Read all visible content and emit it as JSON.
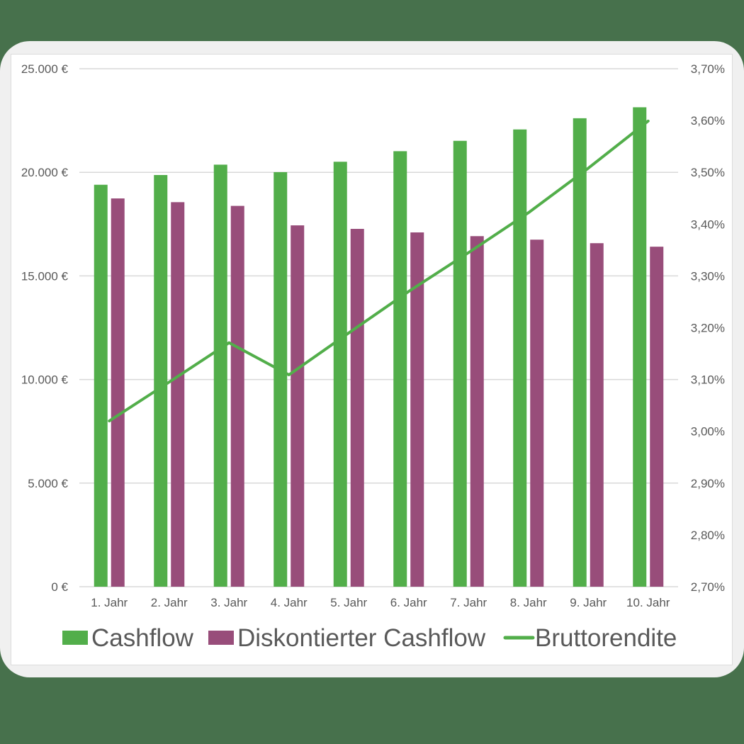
{
  "colors": {
    "background": "#47714c",
    "frame": "#f0f0f0",
    "panel": "#ffffff",
    "cashflow": "#52ae4a",
    "discounted": "#984d7a",
    "line": "#52ae4a",
    "grid": "#d9d9d9",
    "text": "#595959"
  },
  "chart_data": {
    "type": "bar",
    "title": "",
    "xlabel": "",
    "ylabel": "",
    "categories": [
      "1. Jahr",
      "2. Jahr",
      "3. Jahr",
      "4. Jahr",
      "5. Jahr",
      "6. Jahr",
      "7. Jahr",
      "8. Jahr",
      "9. Jahr",
      "10. Jahr"
    ],
    "series": [
      {
        "name": "Cashflow",
        "type": "bar",
        "axis": "left",
        "values": [
          19400,
          19870,
          20370,
          20010,
          20510,
          21020,
          21520,
          22070,
          22610,
          23140
        ]
      },
      {
        "name": "Diskontierter Cashflow",
        "type": "bar",
        "axis": "left",
        "values": [
          18740,
          18560,
          18380,
          17440,
          17270,
          17100,
          16920,
          16750,
          16580,
          16410
        ]
      },
      {
        "name": "Bruttorendite",
        "type": "line",
        "axis": "right",
        "values": [
          3.02,
          3.095,
          3.171,
          3.109,
          3.19,
          3.27,
          3.345,
          3.422,
          3.508,
          3.599
        ]
      }
    ],
    "ylim": [
      0,
      25000
    ],
    "y2lim": [
      2.7,
      3.7
    ],
    "yticks": [
      "0 €",
      "5.000 €",
      "10.000 €",
      "15.000 €",
      "20.000 €",
      "25.000 €"
    ],
    "y2ticks": [
      "2,70%",
      "2,80%",
      "2,90%",
      "3,00%",
      "3,10%",
      "3,20%",
      "3,30%",
      "3,40%",
      "3,50%",
      "3,60%",
      "3,70%"
    ],
    "grid": true,
    "legend_position": "bottom"
  },
  "legend": {
    "items": [
      {
        "label": "Cashflow",
        "kind": "box"
      },
      {
        "label": "Diskontierter Cashflow",
        "kind": "box"
      },
      {
        "label": "Bruttorendite",
        "kind": "line"
      }
    ]
  }
}
